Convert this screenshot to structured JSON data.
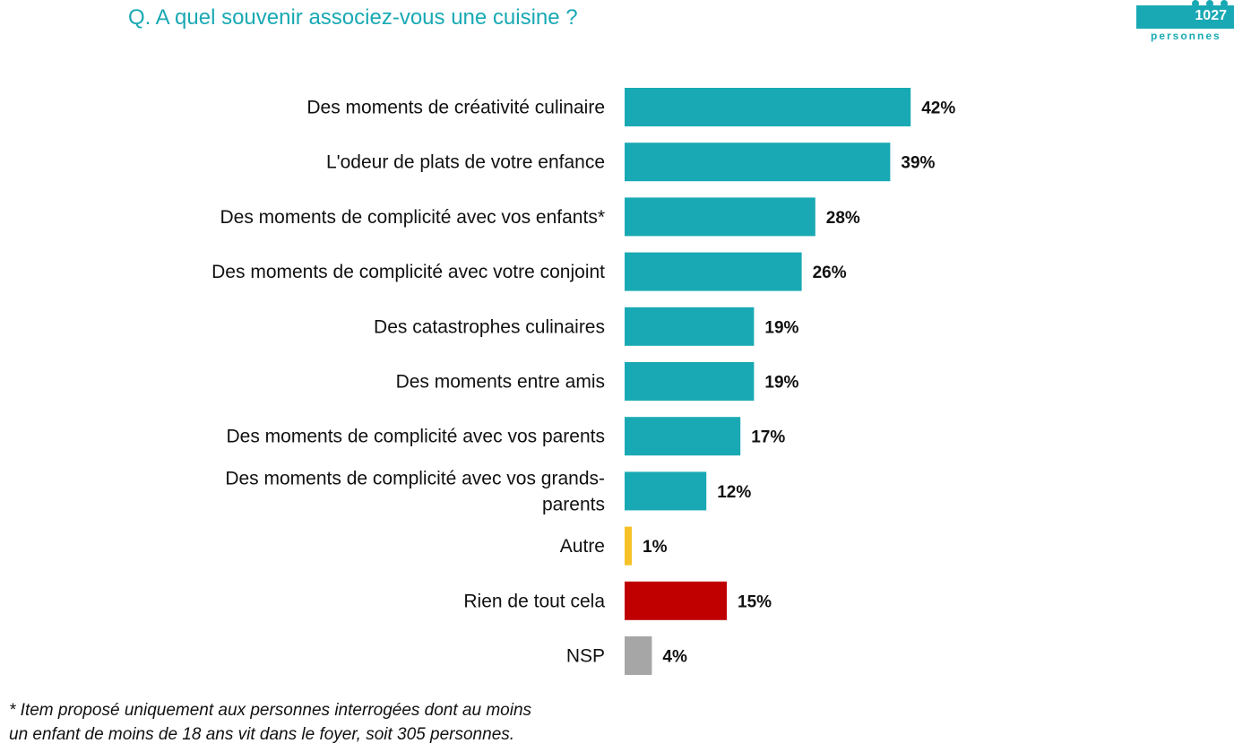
{
  "header": {
    "title": "Q. A quel souvenir associez-vous une cuisine ?",
    "badge_count": "1027",
    "badge_label": "personnes"
  },
  "footnote": {
    "line1": "* Item proposé uniquement aux personnes interrogées dont au moins",
    "line2": "un enfant de moins de 18 ans vit dans le foyer, soit 305 personnes."
  },
  "colors": {
    "accent": "#19a9b4",
    "other": "#f6c127",
    "none": "#c00000",
    "nsp": "#a6a6a6"
  },
  "chart_data": {
    "type": "bar",
    "orientation": "horizontal",
    "title": "",
    "xlabel": "",
    "ylabel": "",
    "xlim": [
      0,
      42
    ],
    "grid": false,
    "categories": [
      "Des moments de créativité culinaire",
      "L'odeur de plats de votre enfance",
      "Des moments de complicité avec vos enfants*",
      "Des moments de complicité avec votre conjoint",
      "Des catastrophes culinaires",
      "Des moments entre amis",
      "Des moments de complicité avec vos parents",
      "Des moments de complicité avec vos grands-parents",
      "Autre",
      "Rien de tout cela",
      "NSP"
    ],
    "category_lines": [
      [
        "Des moments de créativité culinaire"
      ],
      [
        "L'odeur de plats de votre enfance"
      ],
      [
        "Des moments de complicité avec vos enfants*"
      ],
      [
        "Des moments de complicité avec votre conjoint"
      ],
      [
        "Des catastrophes culinaires"
      ],
      [
        "Des moments entre amis"
      ],
      [
        "Des moments de complicité avec vos parents"
      ],
      [
        "Des moments de complicité avec vos grands-",
        "parents"
      ],
      [
        "Autre"
      ],
      [
        "Rien de tout cela"
      ],
      [
        "NSP"
      ]
    ],
    "values": [
      42,
      39,
      28,
      26,
      19,
      19,
      17,
      12,
      1,
      15,
      4
    ],
    "labels": [
      "42%",
      "39%",
      "28%",
      "26%",
      "19%",
      "19%",
      "17%",
      "12%",
      "1%",
      "15%",
      "4%"
    ],
    "bar_colors": [
      "#19a9b4",
      "#19a9b4",
      "#19a9b4",
      "#19a9b4",
      "#19a9b4",
      "#19a9b4",
      "#19a9b4",
      "#19a9b4",
      "#f6c127",
      "#c00000",
      "#a6a6a6"
    ]
  }
}
